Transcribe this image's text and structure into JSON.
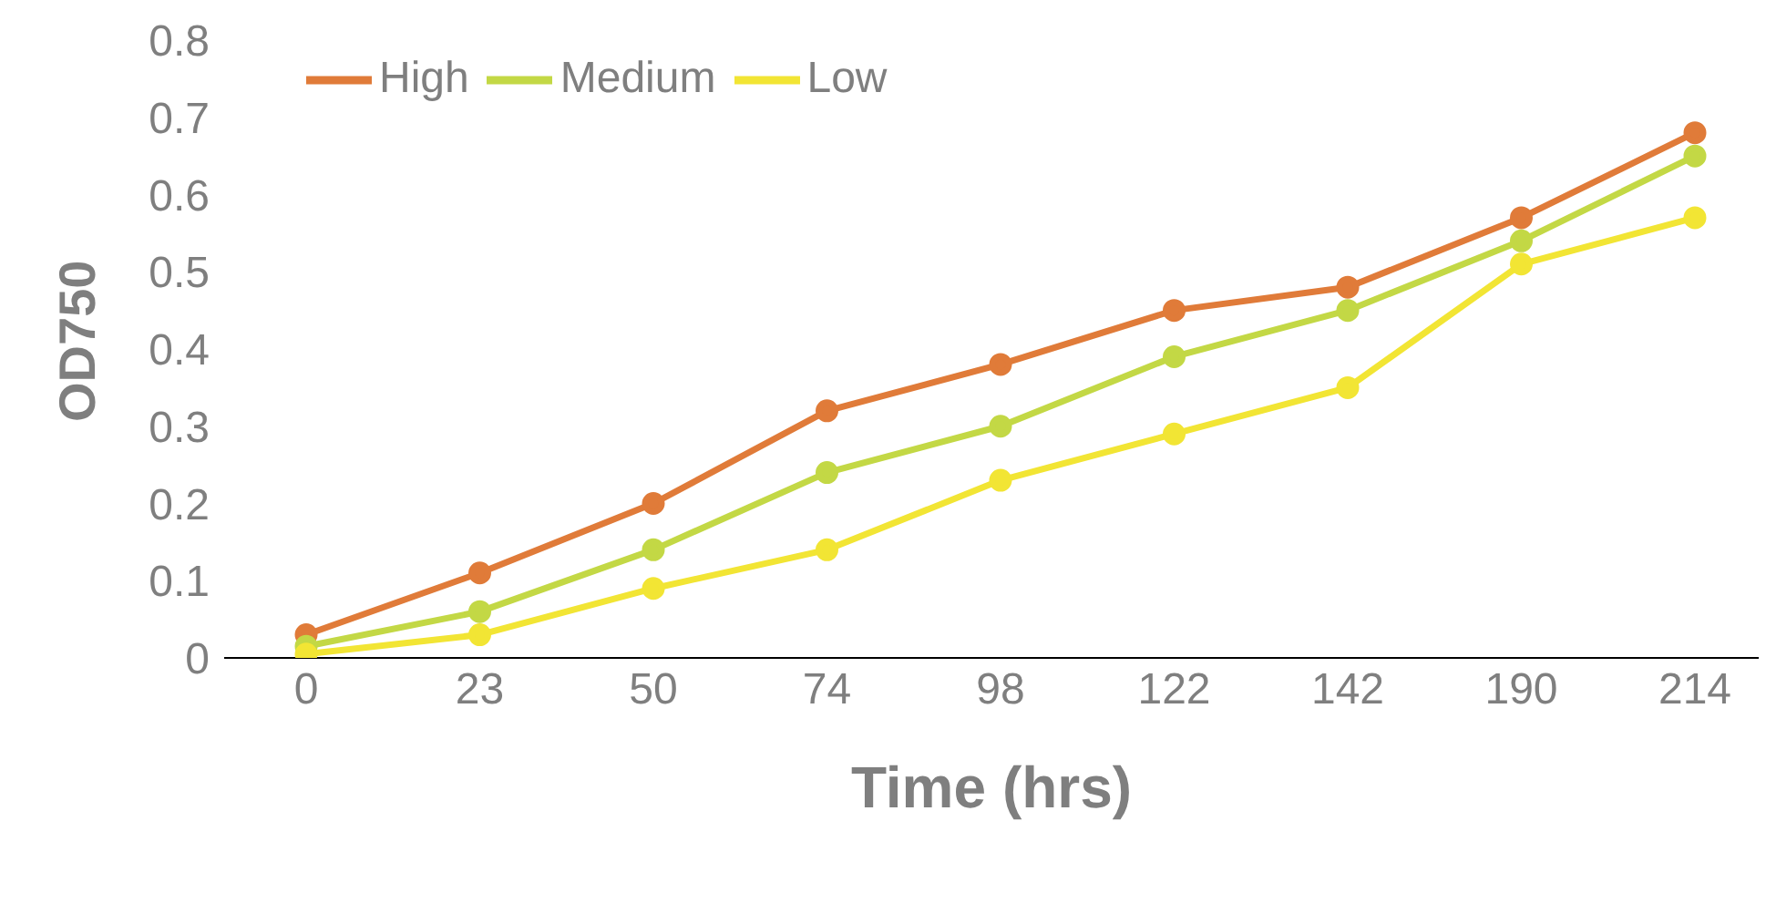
{
  "chart_data": {
    "type": "line",
    "xlabel": "Time (hrs)",
    "ylabel": "OD750",
    "categories": [
      "0",
      "23",
      "50",
      "74",
      "98",
      "122",
      "142",
      "190",
      "214"
    ],
    "series": [
      {
        "name": "High",
        "color": "#e07b39",
        "values": [
          0.03,
          0.11,
          0.2,
          0.32,
          0.38,
          0.45,
          0.48,
          0.57,
          0.68
        ]
      },
      {
        "name": "Medium",
        "color": "#c3d845",
        "values": [
          0.015,
          0.06,
          0.14,
          0.24,
          0.3,
          0.39,
          0.45,
          0.54,
          0.65
        ]
      },
      {
        "name": "Low",
        "color": "#f2e534",
        "values": [
          0.005,
          0.03,
          0.09,
          0.14,
          0.23,
          0.29,
          0.35,
          0.51,
          0.57
        ]
      }
    ],
    "ylim": [
      0,
      0.8
    ],
    "yticks": [
      0,
      0.1,
      0.2,
      0.3,
      0.4,
      0.5,
      0.6,
      0.7,
      0.8
    ],
    "grid": false,
    "legend": "top left",
    "marker": "circle",
    "line_style": "solid"
  }
}
